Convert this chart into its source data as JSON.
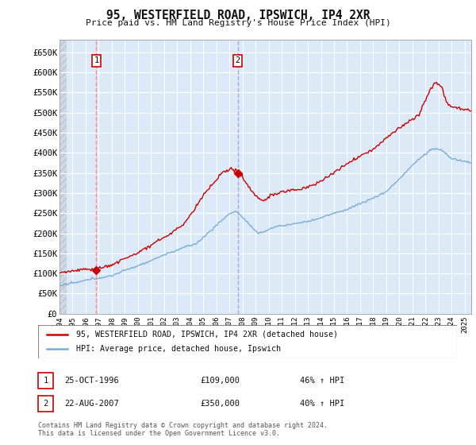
{
  "title": "95, WESTERFIELD ROAD, IPSWICH, IP4 2XR",
  "subtitle": "Price paid vs. HM Land Registry's House Price Index (HPI)",
  "ylim": [
    0,
    680000
  ],
  "yticks": [
    0,
    50000,
    100000,
    150000,
    200000,
    250000,
    300000,
    350000,
    400000,
    450000,
    500000,
    550000,
    600000,
    650000
  ],
  "ytick_labels": [
    "£0",
    "£50K",
    "£100K",
    "£150K",
    "£200K",
    "£250K",
    "£300K",
    "£350K",
    "£400K",
    "£450K",
    "£500K",
    "£550K",
    "£600K",
    "£650K"
  ],
  "xlim_start": 1994.0,
  "xlim_end": 2025.5,
  "xticks": [
    1994,
    1995,
    1996,
    1997,
    1998,
    1999,
    2000,
    2001,
    2002,
    2003,
    2004,
    2005,
    2006,
    2007,
    2008,
    2009,
    2010,
    2011,
    2012,
    2013,
    2014,
    2015,
    2016,
    2017,
    2018,
    2019,
    2020,
    2021,
    2022,
    2023,
    2024,
    2025
  ],
  "background_color": "#ffffff",
  "plot_bg_color": "#dce9f8",
  "grid_color": "#ffffff",
  "red_line_color": "#cc0000",
  "blue_line_color": "#7aadd4",
  "sale1_x": 1996.82,
  "sale1_y": 109000,
  "sale2_x": 2007.64,
  "sale2_y": 350000,
  "vline1_color": "#ff8888",
  "vline2_color": "#aaaacc",
  "annotation_box_color": "#cc0000",
  "legend_label_red": "95, WESTERFIELD ROAD, IPSWICH, IP4 2XR (detached house)",
  "legend_label_blue": "HPI: Average price, detached house, Ipswich",
  "note1_date": "25-OCT-1996",
  "note1_price": "£109,000",
  "note1_hpi": "46% ↑ HPI",
  "note2_date": "22-AUG-2007",
  "note2_price": "£350,000",
  "note2_hpi": "40% ↑ HPI",
  "footer": "Contains HM Land Registry data © Crown copyright and database right 2024.\nThis data is licensed under the Open Government Licence v3.0."
}
